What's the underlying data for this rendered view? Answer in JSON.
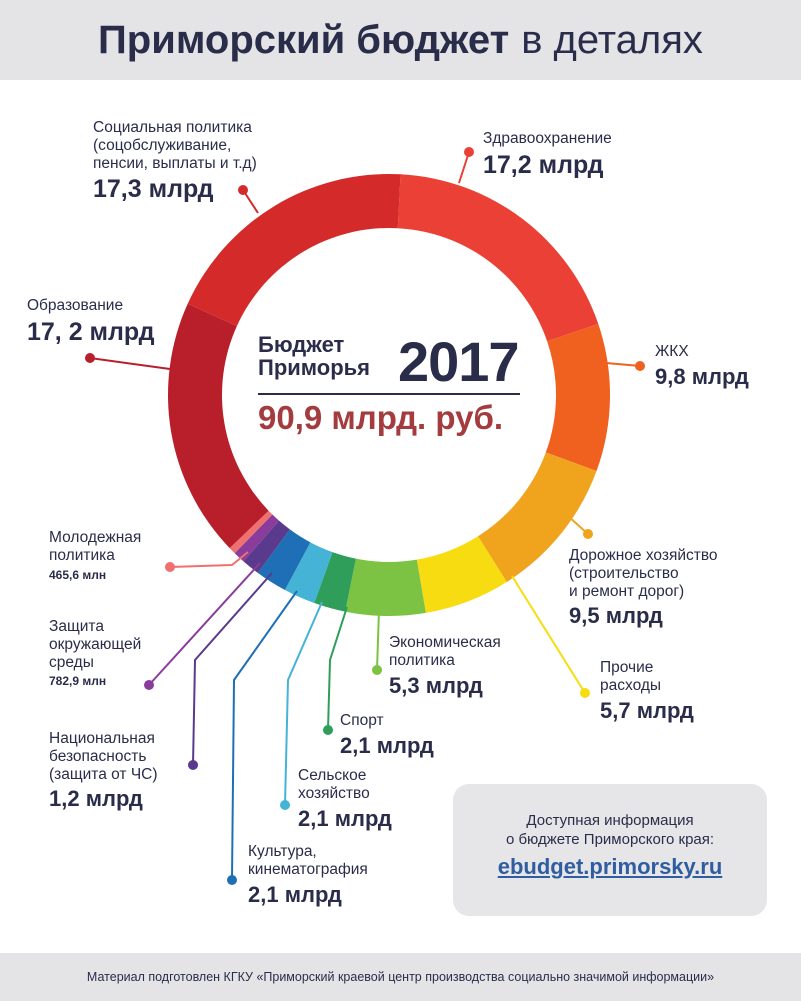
{
  "header": {
    "title_bold": "Приморский бюджет",
    "title_rest": "в деталях"
  },
  "center": {
    "subtitle": "Бюджет\nПриморья",
    "year": "2017",
    "total": "90,9 млрд. руб."
  },
  "info": {
    "line1": "Доступная информация",
    "line2": "о бюджете Приморского края:",
    "link": "ebudget.primorsky.ru"
  },
  "footer": {
    "text": "Материал подготовлен КГКУ «Приморский краевой центр производства социально значимой информации»"
  },
  "chart_data": {
    "type": "pie",
    "style": "donut",
    "title": "Бюджет Приморья 2017",
    "total": "90,9 млрд. руб.",
    "slices": [
      {
        "name": "Здравоохранение",
        "value": 17.2,
        "unit": "млрд",
        "label": "17,2 млрд",
        "color": "#ea4035"
      },
      {
        "name": "ЖКХ",
        "value": 9.8,
        "unit": "млрд",
        "label": "9,8 млрд",
        "color": "#f0601f"
      },
      {
        "name": "Дорожное хозяйство (строительство и ремонт дорог)",
        "value": 9.5,
        "unit": "млрд",
        "label": "9,5 млрд",
        "color": "#f0a41e"
      },
      {
        "name": "Прочие расходы",
        "value": 5.7,
        "unit": "млрд",
        "label": "5,7 млрд",
        "color": "#f7dc12"
      },
      {
        "name": "Экономическая политика",
        "value": 5.3,
        "unit": "млрд",
        "label": "5,3 млрд",
        "color": "#7cc243"
      },
      {
        "name": "Спорт",
        "value": 2.1,
        "unit": "млрд",
        "label": "2,1 млрд",
        "color": "#2e9e5a"
      },
      {
        "name": "Сельское хозяйство",
        "value": 2.1,
        "unit": "млрд",
        "label": "2,1 млрд",
        "color": "#44b3d6"
      },
      {
        "name": "Культура, кинематография",
        "value": 2.1,
        "unit": "млрд",
        "label": "2,1 млрд",
        "color": "#1f6fb6"
      },
      {
        "name": "Национальная безопасность (защита от ЧС)",
        "value": 1.2,
        "unit": "млрд",
        "label": "1,2 млрд",
        "color": "#5a3a8c"
      },
      {
        "name": "Защита окружающей среды",
        "value": 0.7829,
        "unit": "млрд",
        "label": "782,9 млн",
        "color": "#8a3c9c"
      },
      {
        "name": "Молодежная политика",
        "value": 0.4656,
        "unit": "млрд",
        "label": "465,6 млн",
        "color": "#f0706f"
      },
      {
        "name": "Образование",
        "value": 17.2,
        "unit": "млрд",
        "label": "17, 2 млрд",
        "color": "#b81f2b"
      },
      {
        "name": "Социальная политика (соцобслуживание, пенсии, выплаты и т.д)",
        "value": 17.3,
        "unit": "млрд",
        "label": "17,3 млрд",
        "color": "#d42a2a"
      }
    ]
  },
  "labels": [
    {
      "key": "soc",
      "name": "Социальная политика\n(соцобслуживание,\nпенсии, выплаты и т.д)",
      "value": "17,3 млрд"
    },
    {
      "key": "health",
      "name": "Здравоохранение",
      "value": "17,2 млрд"
    },
    {
      "key": "edu",
      "name": "Образование",
      "value": "17, 2 млрд"
    },
    {
      "key": "zhkh",
      "name": "ЖКХ",
      "value": "9,8 млрд"
    },
    {
      "key": "youth",
      "name": "Молодежная\nполитика",
      "value": "465,6 млн"
    },
    {
      "key": "road",
      "name": "Дорожное хозяйство\n(строительство\nи ремонт дорог)",
      "value": "9,5 млрд"
    },
    {
      "key": "env",
      "name": "Защита\nокружающей\nсреды",
      "value": "782,9 млн"
    },
    {
      "key": "econ",
      "name": "Экономическая\nполитика",
      "value": "5,3 млрд"
    },
    {
      "key": "other",
      "name": "Прочие\nрасходы",
      "value": "5,7 млрд"
    },
    {
      "key": "nat",
      "name": "Национальная\nбезопасность\n(защита от ЧС)",
      "value": "1,2 млрд"
    },
    {
      "key": "sport",
      "name": "Спорт",
      "value": "2,1 млрд"
    },
    {
      "key": "agri",
      "name": "Сельское\nхозяйство",
      "value": "2,1 млрд"
    },
    {
      "key": "cult",
      "name": "Культура,\nкинематография",
      "value": "2,1 млрд"
    }
  ]
}
